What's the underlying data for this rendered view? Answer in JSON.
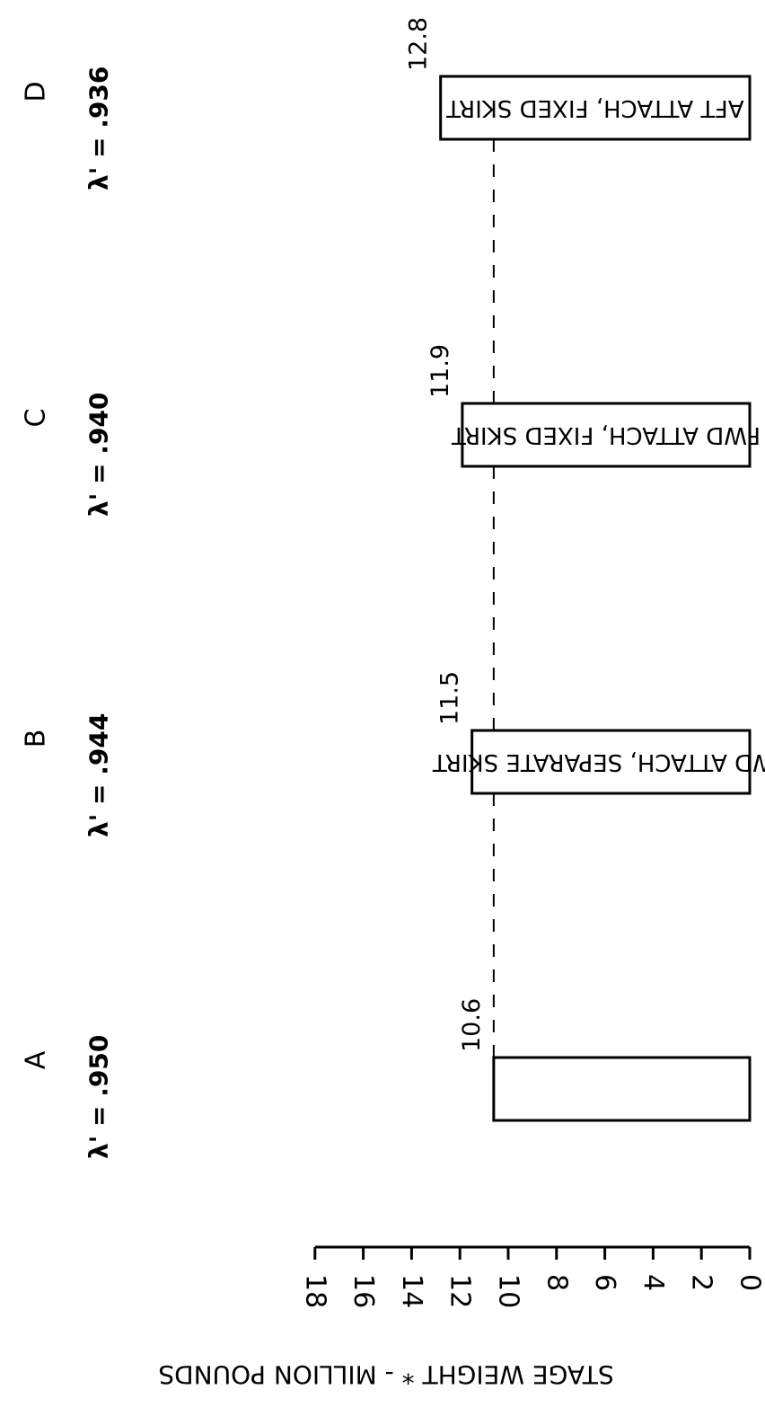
{
  "chart_data": {
    "type": "bar",
    "orientation": "horizontal",
    "ylabel": "STAGE WEIGHT * - MILLION POUNDS",
    "ylim": [
      0,
      18
    ],
    "ticks": [
      "0",
      "2",
      "4",
      "6",
      "8",
      "10",
      "12",
      "14",
      "16",
      "18"
    ],
    "tick_values": [
      0,
      2,
      4,
      6,
      8,
      10,
      12,
      14,
      16,
      18
    ],
    "categories": [
      "A",
      "B",
      "C",
      "D"
    ],
    "values": [
      10.6,
      11.5,
      11.9,
      12.8
    ],
    "value_labels": [
      "10.6",
      "11.5",
      "11.9",
      "12.8"
    ],
    "lambda_labels": [
      "λ' = .950",
      "λ' = .944",
      "λ' = .940",
      "λ' = .936"
    ],
    "bar_texts": [
      "",
      "FWD ATTACH, SEPARATE SKIRT",
      "FWD ATTACH, FIXED SKIRT",
      "AFT ATTACH, FIXED SKIRT"
    ],
    "reference_line": {
      "value": 10.6,
      "style": "dashed"
    },
    "grid": false
  }
}
